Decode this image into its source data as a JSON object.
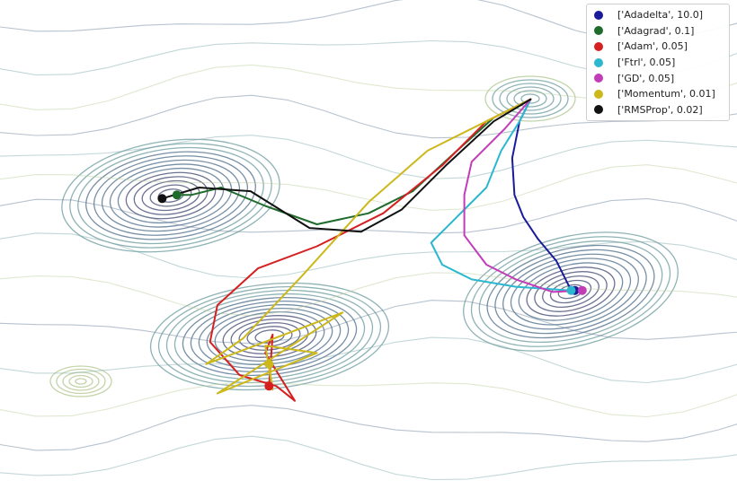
{
  "chart_data": {
    "type": "line",
    "title": "",
    "xlabel": "",
    "ylabel": "",
    "xlim": [
      0,
      10
    ],
    "ylim": [
      0,
      6.65
    ],
    "grid": false,
    "legend_position": "top-right",
    "start_point": {
      "x": 7.2,
      "y": 5.3
    },
    "series": [
      {
        "name": "['Adadelta', 10.0]",
        "color": "#1a1a9c",
        "points": [
          [
            7.2,
            5.3
          ],
          [
            7.05,
            5.0
          ],
          [
            6.95,
            4.5
          ],
          [
            6.98,
            4.0
          ],
          [
            7.1,
            3.7
          ],
          [
            7.3,
            3.4
          ],
          [
            7.55,
            3.1
          ],
          [
            7.75,
            2.7
          ],
          [
            7.8,
            2.7
          ]
        ]
      },
      {
        "name": "['Adagrad', 0.1]",
        "color": "#1f6b2c",
        "points": [
          [
            7.2,
            5.3
          ],
          [
            6.7,
            5.05
          ],
          [
            6.2,
            4.6
          ],
          [
            5.6,
            4.05
          ],
          [
            5.0,
            3.75
          ],
          [
            4.3,
            3.6
          ],
          [
            3.6,
            3.85
          ],
          [
            3.0,
            4.1
          ],
          [
            2.6,
            4.0
          ],
          [
            2.4,
            4.0
          ]
        ]
      },
      {
        "name": "['Adam', 0.05]",
        "color": "#d62020",
        "points": [
          [
            7.2,
            5.3
          ],
          [
            6.6,
            5.0
          ],
          [
            6.0,
            4.4
          ],
          [
            5.2,
            3.75
          ],
          [
            4.3,
            3.3
          ],
          [
            3.5,
            3.0
          ],
          [
            2.95,
            2.5
          ],
          [
            2.85,
            2.0
          ],
          [
            3.25,
            1.55
          ],
          [
            3.75,
            1.4
          ],
          [
            4.0,
            1.2
          ],
          [
            3.6,
            1.85
          ],
          [
            3.7,
            2.1
          ],
          [
            3.65,
            1.4
          ]
        ]
      },
      {
        "name": "['Ftrl', 0.05]",
        "color": "#2bb8cf",
        "points": [
          [
            7.2,
            5.3
          ],
          [
            7.05,
            5.0
          ],
          [
            6.8,
            4.6
          ],
          [
            6.6,
            4.1
          ],
          [
            6.2,
            3.7
          ],
          [
            5.85,
            3.35
          ],
          [
            6.0,
            3.05
          ],
          [
            6.4,
            2.85
          ],
          [
            7.0,
            2.75
          ],
          [
            7.75,
            2.7
          ]
        ]
      },
      {
        "name": "['GD', 0.05]",
        "color": "#c23cb8",
        "points": [
          [
            7.2,
            5.3
          ],
          [
            6.85,
            4.9
          ],
          [
            6.4,
            4.45
          ],
          [
            6.3,
            4.0
          ],
          [
            6.3,
            3.45
          ],
          [
            6.6,
            3.05
          ],
          [
            7.0,
            2.85
          ],
          [
            7.5,
            2.68
          ],
          [
            7.9,
            2.7
          ]
        ]
      },
      {
        "name": "['Momentum', 0.01]",
        "color": "#cdb81a",
        "points": [
          [
            7.2,
            5.3
          ],
          [
            6.6,
            5.0
          ],
          [
            5.8,
            4.6
          ],
          [
            5.0,
            3.9
          ],
          [
            4.1,
            2.9
          ],
          [
            3.3,
            2.05
          ],
          [
            2.8,
            1.7
          ],
          [
            4.65,
            2.4
          ],
          [
            2.95,
            1.3
          ],
          [
            4.3,
            1.85
          ],
          [
            3.6,
            1.95
          ],
          [
            3.7,
            1.35
          ],
          [
            3.65,
            1.7
          ]
        ]
      },
      {
        "name": "['RMSProp', 0.02]",
        "color": "#111111",
        "points": [
          [
            7.2,
            5.3
          ],
          [
            6.7,
            5.0
          ],
          [
            6.05,
            4.4
          ],
          [
            5.45,
            3.8
          ],
          [
            4.9,
            3.5
          ],
          [
            4.2,
            3.55
          ],
          [
            3.4,
            4.05
          ],
          [
            2.7,
            4.1
          ],
          [
            2.2,
            3.95
          ]
        ]
      }
    ]
  },
  "legend": {
    "items": [
      {
        "label": "['Adadelta', 10.0]",
        "color": "#1a1a9c"
      },
      {
        "label": "['Adagrad', 0.1]",
        "color": "#1f6b2c"
      },
      {
        "label": "['Adam', 0.05]",
        "color": "#d62020"
      },
      {
        "label": "['Ftrl', 0.05]",
        "color": "#2bb8cf"
      },
      {
        "label": "['GD', 0.05]",
        "color": "#c23cb8"
      },
      {
        "label": "['Momentum', 0.01]",
        "color": "#cdb81a"
      },
      {
        "label": "['RMSProp', 0.02]",
        "color": "#111111"
      }
    ]
  },
  "contour_colors": [
    "#525a7e",
    "#5f7b95",
    "#7ba6a8",
    "#b7cd9a",
    "#e3dd94"
  ]
}
